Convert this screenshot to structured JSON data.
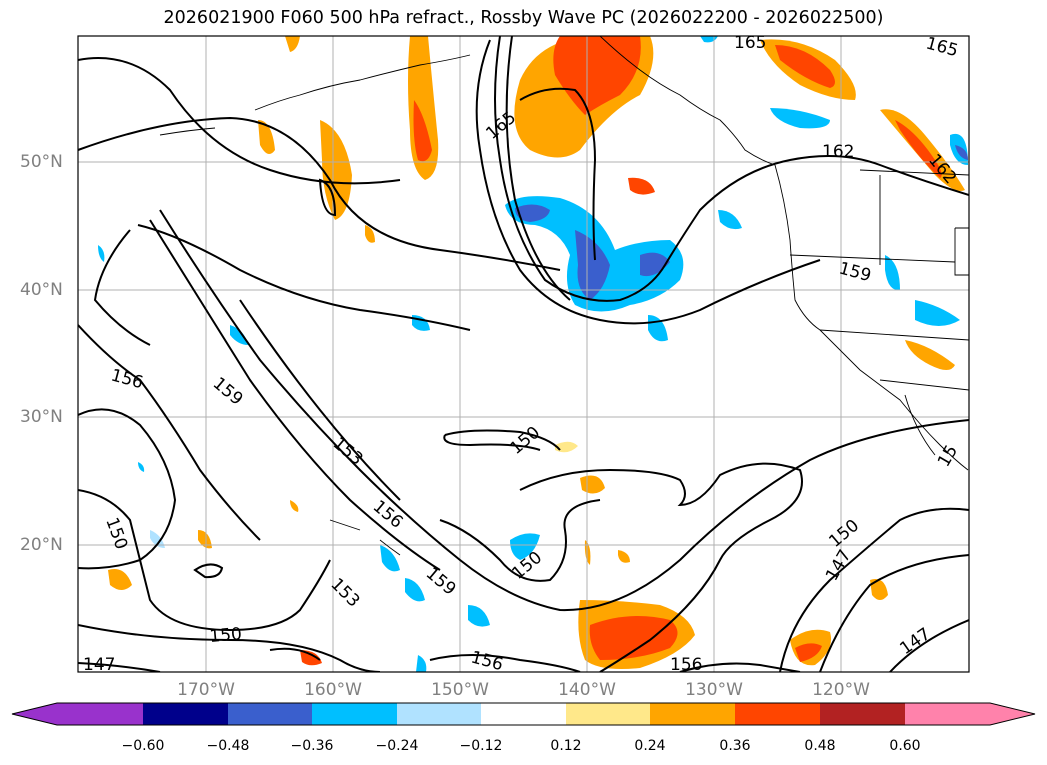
{
  "title": "2026021900 F060 500 hPa refract., Rossby Wave PC (2026022200 - 2026022500)",
  "lat_labels": [
    "50°N",
    "40°N",
    "30°N",
    "20°N"
  ],
  "lon_labels": [
    "170°W",
    "160°W",
    "150°W",
    "140°W",
    "130°W",
    "120°W"
  ],
  "colorbar": {
    "ticks": [
      "−0.60",
      "−0.48",
      "−0.36",
      "−0.24",
      "−0.12",
      "0.12",
      "0.24",
      "0.36",
      "0.48",
      "0.60"
    ],
    "colors": [
      "#9932cc",
      "#00008b",
      "#3a5fcd",
      "#00bfff",
      "#b0e2ff",
      "#ffffff",
      "#ffe88a",
      "#ffa500",
      "#ff4500",
      "#b22222",
      "#ff82ab"
    ]
  },
  "contour_labels": [
    {
      "text": "165"
    },
    {
      "text": "165"
    },
    {
      "text": "165"
    },
    {
      "text": "162"
    },
    {
      "text": "162"
    },
    {
      "text": "159"
    },
    {
      "text": "159"
    },
    {
      "text": "159"
    },
    {
      "text": "156"
    },
    {
      "text": "156"
    },
    {
      "text": "156"
    },
    {
      "text": "156"
    },
    {
      "text": "153"
    },
    {
      "text": "153"
    },
    {
      "text": "150"
    },
    {
      "text": "150"
    },
    {
      "text": "150"
    },
    {
      "text": "150"
    },
    {
      "text": "150"
    },
    {
      "text": "147"
    },
    {
      "text": "147"
    },
    {
      "text": "147"
    },
    {
      "text": "15"
    }
  ]
}
